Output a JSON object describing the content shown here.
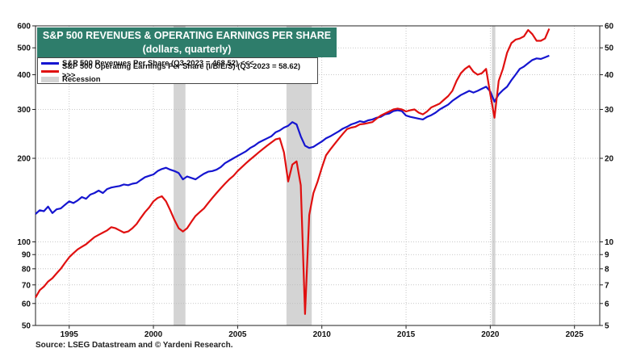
{
  "title": {
    "line1": "S&P 500 REVENUES & OPERATING EARNINGS PER SHARE",
    "line2": "(dollars, quarterly)"
  },
  "legend": [
    {
      "label": "S&P 500 Revenues Per Share (Q3-2023 = 468.52) <<<",
      "color": "#1515d0"
    },
    {
      "label": "S&P 500 Operating Earnings Per Share (I/B/E/S) (Q3-2023 = 58.62) >>>",
      "color": "#e01010"
    },
    {
      "label": "Recession",
      "color": "#d4d4d4"
    }
  ],
  "source": "Source: LSEG Datastream and © Yardeni Research.",
  "chart_data": {
    "type": "line",
    "x_range": [
      1993,
      2026.5
    ],
    "x_ticks": [
      1995,
      2000,
      2005,
      2010,
      2015,
      2020,
      2025
    ],
    "left_axis": {
      "scale": "log",
      "range": [
        50,
        600
      ],
      "ticks": [
        50,
        60,
        70,
        80,
        90,
        100,
        200,
        300,
        400,
        500,
        600
      ]
    },
    "right_axis": {
      "scale": "log",
      "range": [
        5,
        60
      ],
      "ticks": [
        5,
        6,
        7,
        8,
        9,
        10,
        20,
        30,
        40,
        50,
        60
      ]
    },
    "recessions": [
      [
        2001.2,
        2001.9
      ],
      [
        2007.9,
        2009.4
      ],
      [
        2020.1,
        2020.3
      ]
    ],
    "series": [
      {
        "name": "S&P 500 Revenues Per Share (Q3-2023 = 468.52) <<<",
        "axis": "left",
        "color": "#1515d0",
        "points": [
          [
            1993.0,
            126
          ],
          [
            1993.25,
            130
          ],
          [
            1993.5,
            129
          ],
          [
            1993.75,
            134
          ],
          [
            1994.0,
            127
          ],
          [
            1994.25,
            131
          ],
          [
            1994.5,
            132
          ],
          [
            1994.75,
            136
          ],
          [
            1995.0,
            140
          ],
          [
            1995.25,
            138
          ],
          [
            1995.5,
            141
          ],
          [
            1995.75,
            145
          ],
          [
            1996.0,
            143
          ],
          [
            1996.25,
            148
          ],
          [
            1996.5,
            150
          ],
          [
            1996.75,
            153
          ],
          [
            1997.0,
            150
          ],
          [
            1997.25,
            155
          ],
          [
            1997.5,
            157
          ],
          [
            1997.75,
            158
          ],
          [
            1998.0,
            159
          ],
          [
            1998.25,
            161
          ],
          [
            1998.5,
            160
          ],
          [
            1998.75,
            162
          ],
          [
            1999.0,
            163
          ],
          [
            1999.25,
            167
          ],
          [
            1999.5,
            171
          ],
          [
            1999.75,
            173
          ],
          [
            2000.0,
            175
          ],
          [
            2000.25,
            180
          ],
          [
            2000.5,
            183
          ],
          [
            2000.75,
            185
          ],
          [
            2001.0,
            182
          ],
          [
            2001.25,
            180
          ],
          [
            2001.5,
            177
          ],
          [
            2001.75,
            168
          ],
          [
            2002.0,
            172
          ],
          [
            2002.25,
            170
          ],
          [
            2002.5,
            168
          ],
          [
            2002.75,
            172
          ],
          [
            2003.0,
            176
          ],
          [
            2003.25,
            179
          ],
          [
            2003.5,
            180
          ],
          [
            2003.75,
            182
          ],
          [
            2004.0,
            186
          ],
          [
            2004.25,
            192
          ],
          [
            2004.5,
            196
          ],
          [
            2004.75,
            200
          ],
          [
            2005.0,
            204
          ],
          [
            2005.25,
            208
          ],
          [
            2005.5,
            212
          ],
          [
            2005.75,
            218
          ],
          [
            2006.0,
            222
          ],
          [
            2006.25,
            228
          ],
          [
            2006.5,
            232
          ],
          [
            2006.75,
            236
          ],
          [
            2007.0,
            240
          ],
          [
            2007.25,
            248
          ],
          [
            2007.5,
            252
          ],
          [
            2007.75,
            258
          ],
          [
            2008.0,
            262
          ],
          [
            2008.25,
            270
          ],
          [
            2008.5,
            265
          ],
          [
            2008.75,
            240
          ],
          [
            2009.0,
            222
          ],
          [
            2009.25,
            218
          ],
          [
            2009.5,
            220
          ],
          [
            2009.75,
            225
          ],
          [
            2010.0,
            230
          ],
          [
            2010.25,
            236
          ],
          [
            2010.5,
            240
          ],
          [
            2010.75,
            245
          ],
          [
            2011.0,
            250
          ],
          [
            2011.25,
            256
          ],
          [
            2011.5,
            260
          ],
          [
            2011.75,
            265
          ],
          [
            2012.0,
            268
          ],
          [
            2012.25,
            272
          ],
          [
            2012.5,
            270
          ],
          [
            2012.75,
            274
          ],
          [
            2013.0,
            276
          ],
          [
            2013.25,
            280
          ],
          [
            2013.5,
            282
          ],
          [
            2013.75,
            288
          ],
          [
            2014.0,
            290
          ],
          [
            2014.25,
            296
          ],
          [
            2014.5,
            298
          ],
          [
            2014.75,
            296
          ],
          [
            2015.0,
            285
          ],
          [
            2015.25,
            282
          ],
          [
            2015.5,
            280
          ],
          [
            2015.75,
            278
          ],
          [
            2016.0,
            276
          ],
          [
            2016.25,
            282
          ],
          [
            2016.5,
            286
          ],
          [
            2016.75,
            292
          ],
          [
            2017.0,
            300
          ],
          [
            2017.25,
            306
          ],
          [
            2017.5,
            312
          ],
          [
            2017.75,
            322
          ],
          [
            2018.0,
            330
          ],
          [
            2018.25,
            338
          ],
          [
            2018.5,
            344
          ],
          [
            2018.75,
            350
          ],
          [
            2019.0,
            345
          ],
          [
            2019.25,
            350
          ],
          [
            2019.5,
            356
          ],
          [
            2019.75,
            362
          ],
          [
            2020.0,
            348
          ],
          [
            2020.25,
            320
          ],
          [
            2020.5,
            340
          ],
          [
            2020.75,
            352
          ],
          [
            2021.0,
            362
          ],
          [
            2021.25,
            382
          ],
          [
            2021.5,
            400
          ],
          [
            2021.75,
            420
          ],
          [
            2022.0,
            428
          ],
          [
            2022.25,
            440
          ],
          [
            2022.5,
            452
          ],
          [
            2022.75,
            458
          ],
          [
            2023.0,
            456
          ],
          [
            2023.25,
            462
          ],
          [
            2023.5,
            468.52
          ]
        ]
      },
      {
        "name": "S&P 500 Operating Earnings Per Share (I/B/E/S) (Q3-2023 = 58.62) >>>",
        "axis": "right",
        "color": "#e01010",
        "points": [
          [
            1993.0,
            6.3
          ],
          [
            1993.25,
            6.7
          ],
          [
            1993.5,
            6.9
          ],
          [
            1993.75,
            7.2
          ],
          [
            1994.0,
            7.4
          ],
          [
            1994.25,
            7.7
          ],
          [
            1994.5,
            8.0
          ],
          [
            1994.75,
            8.4
          ],
          [
            1995.0,
            8.8
          ],
          [
            1995.25,
            9.1
          ],
          [
            1995.5,
            9.4
          ],
          [
            1995.75,
            9.6
          ],
          [
            1996.0,
            9.8
          ],
          [
            1996.25,
            10.1
          ],
          [
            1996.5,
            10.4
          ],
          [
            1996.75,
            10.6
          ],
          [
            1997.0,
            10.8
          ],
          [
            1997.25,
            11.0
          ],
          [
            1997.5,
            11.3
          ],
          [
            1997.75,
            11.2
          ],
          [
            1998.0,
            11.0
          ],
          [
            1998.25,
            10.8
          ],
          [
            1998.5,
            10.9
          ],
          [
            1998.75,
            11.2
          ],
          [
            1999.0,
            11.6
          ],
          [
            1999.25,
            12.2
          ],
          [
            1999.5,
            12.8
          ],
          [
            1999.75,
            13.3
          ],
          [
            2000.0,
            14.0
          ],
          [
            2000.25,
            14.4
          ],
          [
            2000.5,
            14.6
          ],
          [
            2000.75,
            14.0
          ],
          [
            2001.0,
            13.0
          ],
          [
            2001.25,
            12.0
          ],
          [
            2001.5,
            11.2
          ],
          [
            2001.75,
            10.9
          ],
          [
            2002.0,
            11.2
          ],
          [
            2002.25,
            11.8
          ],
          [
            2002.5,
            12.4
          ],
          [
            2002.75,
            12.8
          ],
          [
            2003.0,
            13.2
          ],
          [
            2003.25,
            13.8
          ],
          [
            2003.5,
            14.4
          ],
          [
            2003.75,
            15.0
          ],
          [
            2004.0,
            15.6
          ],
          [
            2004.25,
            16.2
          ],
          [
            2004.5,
            16.8
          ],
          [
            2004.75,
            17.3
          ],
          [
            2005.0,
            18.0
          ],
          [
            2005.25,
            18.6
          ],
          [
            2005.5,
            19.2
          ],
          [
            2005.75,
            19.8
          ],
          [
            2006.0,
            20.4
          ],
          [
            2006.25,
            21.0
          ],
          [
            2006.5,
            21.6
          ],
          [
            2006.75,
            22.2
          ],
          [
            2007.0,
            22.8
          ],
          [
            2007.25,
            23.4
          ],
          [
            2007.5,
            23.6
          ],
          [
            2007.75,
            21.0
          ],
          [
            2008.0,
            16.5
          ],
          [
            2008.25,
            19.0
          ],
          [
            2008.5,
            19.5
          ],
          [
            2008.75,
            16.0
          ],
          [
            2009.0,
            5.5
          ],
          [
            2009.25,
            12.5
          ],
          [
            2009.5,
            15.0
          ],
          [
            2009.75,
            16.5
          ],
          [
            2010.0,
            18.5
          ],
          [
            2010.25,
            20.5
          ],
          [
            2010.5,
            21.5
          ],
          [
            2010.75,
            22.5
          ],
          [
            2011.0,
            23.5
          ],
          [
            2011.25,
            24.5
          ],
          [
            2011.5,
            25.5
          ],
          [
            2011.75,
            25.8
          ],
          [
            2012.0,
            26.0
          ],
          [
            2012.25,
            26.5
          ],
          [
            2012.5,
            26.6
          ],
          [
            2012.75,
            26.8
          ],
          [
            2013.0,
            27.0
          ],
          [
            2013.25,
            27.8
          ],
          [
            2013.5,
            28.5
          ],
          [
            2013.75,
            29.0
          ],
          [
            2014.0,
            29.5
          ],
          [
            2014.25,
            30.0
          ],
          [
            2014.5,
            30.2
          ],
          [
            2014.75,
            30.0
          ],
          [
            2015.0,
            29.5
          ],
          [
            2015.25,
            29.8
          ],
          [
            2015.5,
            30.0
          ],
          [
            2015.75,
            29.2
          ],
          [
            2016.0,
            28.8
          ],
          [
            2016.25,
            29.5
          ],
          [
            2016.5,
            30.5
          ],
          [
            2016.75,
            31.0
          ],
          [
            2017.0,
            31.5
          ],
          [
            2017.25,
            32.5
          ],
          [
            2017.5,
            33.5
          ],
          [
            2017.75,
            35.0
          ],
          [
            2018.0,
            38.0
          ],
          [
            2018.25,
            40.5
          ],
          [
            2018.5,
            42.0
          ],
          [
            2018.75,
            43.0
          ],
          [
            2019.0,
            41.0
          ],
          [
            2019.25,
            40.0
          ],
          [
            2019.5,
            40.5
          ],
          [
            2019.75,
            42.0
          ],
          [
            2020.0,
            34.0
          ],
          [
            2020.25,
            28.0
          ],
          [
            2020.5,
            38.0
          ],
          [
            2020.75,
            42.0
          ],
          [
            2021.0,
            48.0
          ],
          [
            2021.25,
            52.0
          ],
          [
            2021.5,
            53.5
          ],
          [
            2021.75,
            54.0
          ],
          [
            2022.0,
            55.0
          ],
          [
            2022.25,
            58.0
          ],
          [
            2022.5,
            56.0
          ],
          [
            2022.75,
            53.0
          ],
          [
            2023.0,
            53.0
          ],
          [
            2023.25,
            54.0
          ],
          [
            2023.5,
            58.62
          ]
        ]
      }
    ]
  }
}
